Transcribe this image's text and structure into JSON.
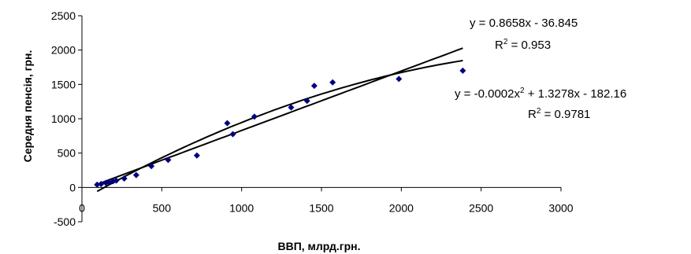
{
  "chart_data": {
    "type": "scatter",
    "xlabel": "ВВП, млрд.грн.",
    "ylabel": "Середня пенсія, грн.",
    "xlim": [
      0,
      3000
    ],
    "ylim": [
      -500,
      2500
    ],
    "x_ticks": [
      "0",
      "500",
      "1000",
      "1500",
      "2000",
      "2500",
      "3000"
    ],
    "y_ticks": [
      "-500",
      "0",
      "500",
      "1000",
      "1500",
      "2000",
      "2500"
    ],
    "grid": false,
    "marker_color": "#00007f",
    "series": [
      {
        "points": [
          [
            95,
            40
          ],
          [
            120,
            50
          ],
          [
            150,
            65
          ],
          [
            170,
            75
          ],
          [
            195,
            90
          ],
          [
            215,
            100
          ],
          [
            265,
            130
          ],
          [
            340,
            180
          ],
          [
            435,
            310
          ],
          [
            540,
            400
          ],
          [
            720,
            465
          ],
          [
            910,
            935
          ],
          [
            945,
            775
          ],
          [
            1080,
            1030
          ],
          [
            1310,
            1165
          ],
          [
            1410,
            1260
          ],
          [
            1455,
            1480
          ],
          [
            1570,
            1530
          ],
          [
            1985,
            1580
          ],
          [
            2385,
            1700
          ]
        ]
      }
    ],
    "trendlines": [
      {
        "kind": "linear",
        "slope": 0.8658,
        "intercept": -36.845,
        "x_range": [
          95,
          2385
        ],
        "equation": "y = 0.8658x - 36.845",
        "r2_prefix": "R",
        "r2_exp": "2",
        "r2_value": " = 0.953"
      },
      {
        "kind": "polynomial",
        "coeffs": [
          -0.0002,
          1.3278,
          -182.16
        ],
        "x_range": [
          95,
          2385
        ],
        "equation_part1": "y = -0.0002x",
        "equation_exp": "2",
        "equation_part2": " + 1.3278x - 182.16",
        "r2_prefix": "R",
        "r2_exp": "2",
        "r2_value": " = 0.9781"
      }
    ]
  }
}
